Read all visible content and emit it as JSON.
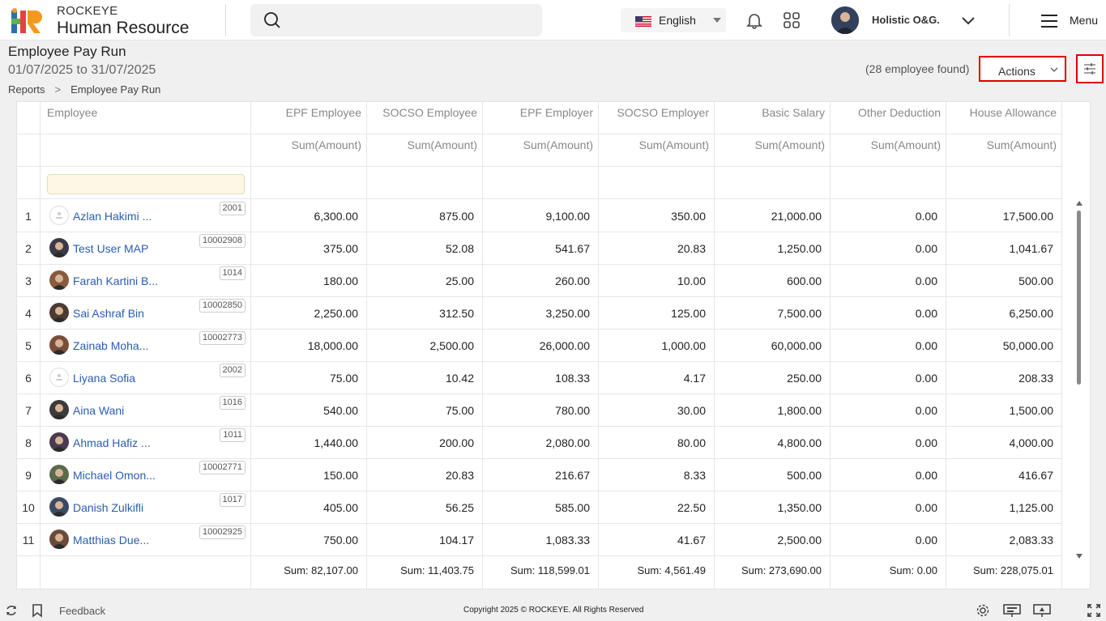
{
  "header": {
    "brand_top": "ROCKEYE",
    "brand_bottom": "Human Resource",
    "language": "English",
    "org_name": "Holistic O&G.",
    "menu_label": "Menu"
  },
  "page": {
    "title": "Employee Pay Run",
    "date_range": "01/07/2025 to 31/07/2025",
    "breadcrumb": [
      "Reports",
      "Employee Pay Run"
    ],
    "employee_count": "(28 employee found)",
    "actions_label": "Actions"
  },
  "table": {
    "employee_header": "Employee",
    "columns": [
      {
        "header": "EPF Employee",
        "sub": "Sum(Amount)",
        "sum": "Sum: 82,107.00"
      },
      {
        "header": "SOCSO Employee",
        "sub": "Sum(Amount)",
        "sum": "Sum: 11,403.75"
      },
      {
        "header": "EPF Employer",
        "sub": "Sum(Amount)",
        "sum": "Sum: 118,599.01"
      },
      {
        "header": "SOCSO Employer",
        "sub": "Sum(Amount)",
        "sum": "Sum: 4,561.49"
      },
      {
        "header": "Basic Salary",
        "sub": "Sum(Amount)",
        "sum": "Sum: 273,690.00"
      },
      {
        "header": "Other Deduction",
        "sub": "Sum(Amount)",
        "sum": "Sum: 0.00"
      },
      {
        "header": "House Allowance",
        "sub": "Sum(Amount)",
        "sum": "Sum: 228,075.01"
      }
    ],
    "rows": [
      {
        "n": "1",
        "name": "Azlan Hakimi ...",
        "id": "2001",
        "avatar": "placeholder",
        "values": [
          "6,300.00",
          "875.00",
          "9,100.00",
          "350.00",
          "21,000.00",
          "0.00",
          "17,500.00"
        ]
      },
      {
        "n": "2",
        "name": "Test User MAP",
        "id": "10002908",
        "avatar": "photo",
        "values": [
          "375.00",
          "52.08",
          "541.67",
          "20.83",
          "1,250.00",
          "0.00",
          "1,041.67"
        ]
      },
      {
        "n": "3",
        "name": "Farah Kartini B...",
        "id": "1014",
        "avatar": "photo",
        "values": [
          "180.00",
          "25.00",
          "260.00",
          "10.00",
          "600.00",
          "0.00",
          "500.00"
        ]
      },
      {
        "n": "4",
        "name": "Sai Ashraf Bin",
        "id": "10002850",
        "avatar": "photo",
        "values": [
          "2,250.00",
          "312.50",
          "3,250.00",
          "125.00",
          "7,500.00",
          "0.00",
          "6,250.00"
        ]
      },
      {
        "n": "5",
        "name": "Zainab Moha...",
        "id": "10002773",
        "avatar": "photo",
        "values": [
          "18,000.00",
          "2,500.00",
          "26,000.00",
          "1,000.00",
          "60,000.00",
          "0.00",
          "50,000.00"
        ]
      },
      {
        "n": "6",
        "name": "Liyana Sofia",
        "id": "2002",
        "avatar": "placeholder",
        "values": [
          "75.00",
          "10.42",
          "108.33",
          "4.17",
          "250.00",
          "0.00",
          "208.33"
        ]
      },
      {
        "n": "7",
        "name": "Aina Wani",
        "id": "1016",
        "avatar": "photo",
        "values": [
          "540.00",
          "75.00",
          "780.00",
          "30.00",
          "1,800.00",
          "0.00",
          "1,500.00"
        ]
      },
      {
        "n": "8",
        "name": "Ahmad Hafiz ...",
        "id": "1011",
        "avatar": "photo",
        "values": [
          "1,440.00",
          "200.00",
          "2,080.00",
          "80.00",
          "4,800.00",
          "0.00",
          "4,000.00"
        ]
      },
      {
        "n": "9",
        "name": "Michael Omon...",
        "id": "10002771",
        "avatar": "photo",
        "values": [
          "150.00",
          "20.83",
          "216.67",
          "8.33",
          "500.00",
          "0.00",
          "416.67"
        ]
      },
      {
        "n": "10",
        "name": "Danish Zulkifli",
        "id": "1017",
        "avatar": "photo",
        "values": [
          "405.00",
          "56.25",
          "585.00",
          "22.50",
          "1,350.00",
          "0.00",
          "1,125.00"
        ]
      },
      {
        "n": "11",
        "name": "Matthias Due...",
        "id": "10002925",
        "avatar": "photo",
        "values": [
          "750.00",
          "104.17",
          "1,083.33",
          "41.67",
          "2,500.00",
          "0.00",
          "2,083.33"
        ]
      }
    ]
  },
  "footer": {
    "feedback": "Feedback",
    "copyright": "Copyright 2025 © ROCKEYE. All Rights Reserved"
  },
  "colors": {
    "highlight_border": "#e00000",
    "link": "#2a5db0",
    "logo_orange": "#f39a1e",
    "logo_red": "#e8413c",
    "logo_blue": "#2e6db4",
    "logo_green": "#5ab54b"
  }
}
